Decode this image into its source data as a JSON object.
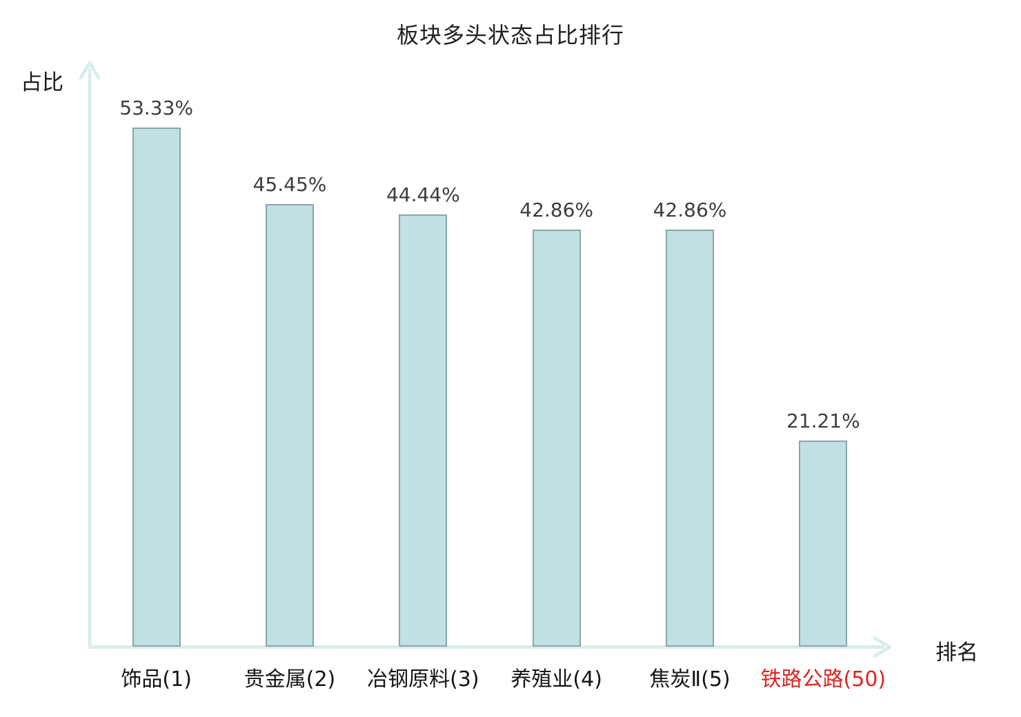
{
  "title": "板块多头状态占比排行",
  "axes": {
    "y_label": "占比",
    "x_label": "排名"
  },
  "colors": {
    "bar_fill": "#c1e0e3",
    "bar_border": "#8ba4aa",
    "axis": "#d9eded",
    "title_text": "#1f1f1f",
    "value_text": "#3d3d3d",
    "category_text": "#141414",
    "highlight_text": "#e02420"
  },
  "chart_data": {
    "type": "bar",
    "title": "板块多头状态占比排行",
    "xlabel": "排名",
    "ylabel": "占比",
    "categories": [
      "饰品(1)",
      "贵金属(2)",
      "冶钢原料(3)",
      "养殖业(4)",
      "焦炭Ⅱ(5)",
      "铁路公路(50)"
    ],
    "values": [
      53.33,
      45.45,
      44.44,
      42.86,
      42.86,
      21.21
    ],
    "value_labels": [
      "53.33%",
      "45.45%",
      "44.44%",
      "42.86%",
      "42.86%",
      "21.21%"
    ],
    "highlight_index": 5,
    "ylim": [
      0,
      60
    ],
    "grid": false,
    "legend": false,
    "value_unit": "%"
  }
}
